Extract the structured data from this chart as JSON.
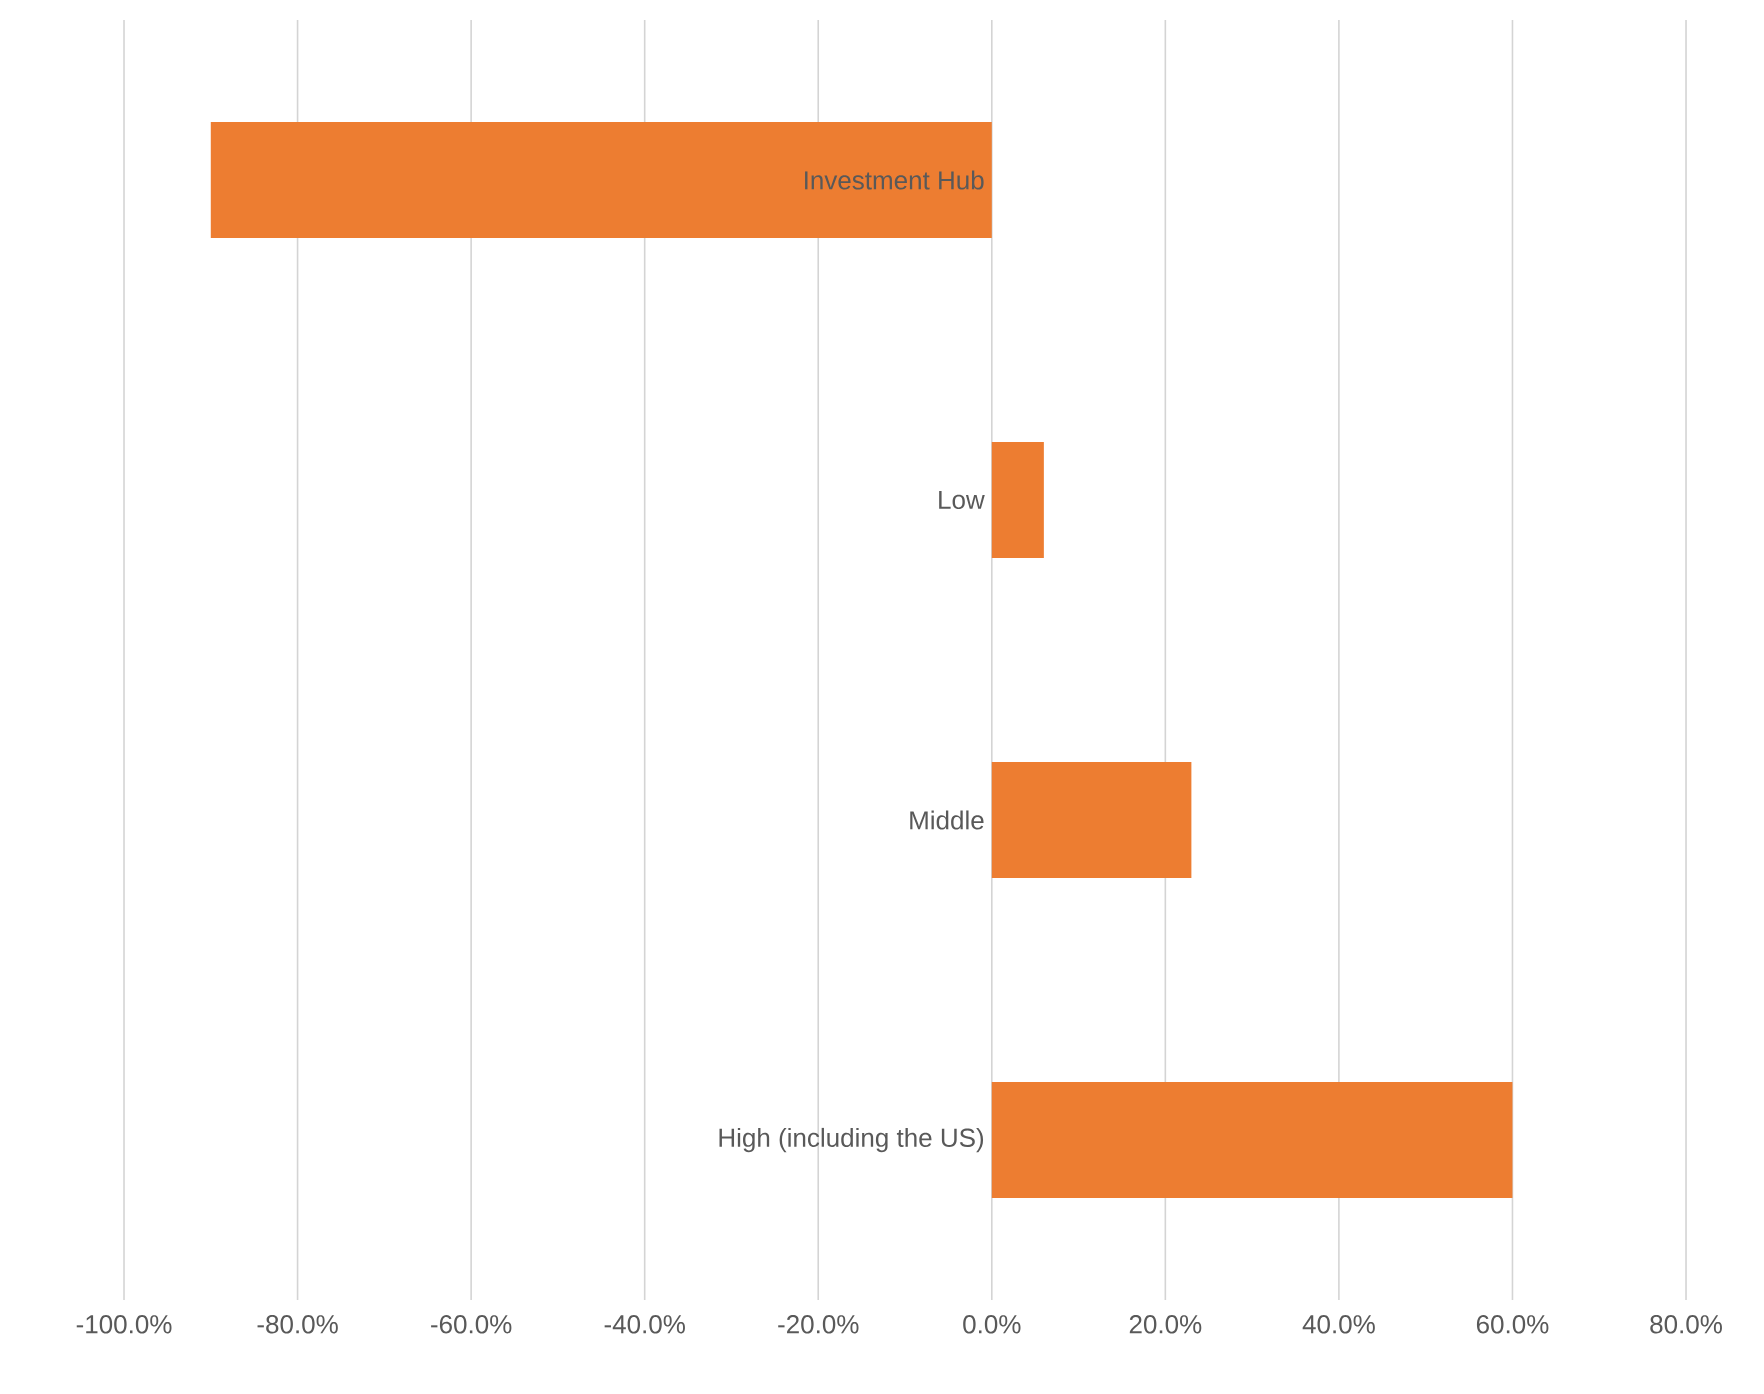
{
  "chart_data": {
    "type": "bar",
    "orientation": "horizontal",
    "categories": [
      "Investment Hub",
      "Low",
      "Middle",
      "High (including the US)"
    ],
    "values": [
      -90,
      6,
      23,
      60
    ],
    "color": "#ed7d31",
    "xlim": [
      -100,
      80
    ],
    "xticks": [
      {
        "value": -100,
        "label": "-100.0%"
      },
      {
        "value": -80,
        "label": "-80.0%"
      },
      {
        "value": -60,
        "label": "-60.0%"
      },
      {
        "value": -40,
        "label": "-40.0%"
      },
      {
        "value": -20,
        "label": "-20.0%"
      },
      {
        "value": 0,
        "label": "0.0%"
      },
      {
        "value": 20,
        "label": "20.0%"
      },
      {
        "value": 40,
        "label": "40.0%"
      },
      {
        "value": 60,
        "label": "60.0%"
      },
      {
        "value": 80,
        "label": "80.0%"
      }
    ],
    "grid": "x"
  }
}
